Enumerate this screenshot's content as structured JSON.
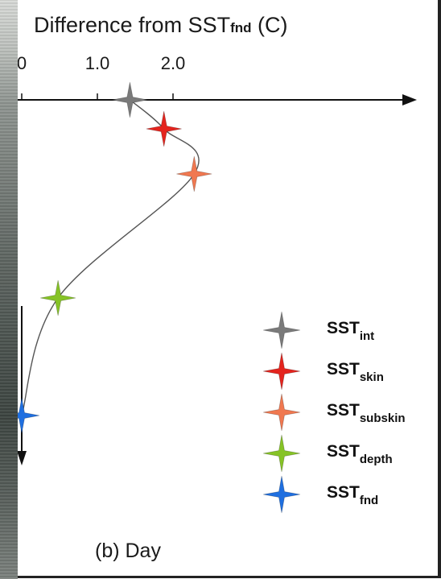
{
  "chart_data": {
    "type": "scatter",
    "title": {
      "main": "Difference from SST",
      "sub": "fnd",
      "suffix": " (C)"
    },
    "x_ticks": [
      "0",
      "1.0",
      "2.0"
    ],
    "xlim": [
      0,
      2.4
    ],
    "series": [
      {
        "name": {
          "main": "SST",
          "sub": "int"
        },
        "x": 1.43,
        "color": "#7a7a7a"
      },
      {
        "name": {
          "main": "SST",
          "sub": "skin"
        },
        "x": 1.88,
        "color": "#e4241e"
      },
      {
        "name": {
          "main": "SST",
          "sub": "subskin"
        },
        "x": 2.28,
        "color": "#f07850"
      },
      {
        "name": {
          "main": "SST",
          "sub": "depth"
        },
        "x": 0.48,
        "color": "#86c326"
      },
      {
        "name": {
          "main": "SST",
          "sub": "fnd"
        },
        "x": 0.0,
        "color": "#1f6fe0"
      }
    ],
    "panel_label": "(b) Day",
    "grid": false,
    "legend_position": "right"
  }
}
